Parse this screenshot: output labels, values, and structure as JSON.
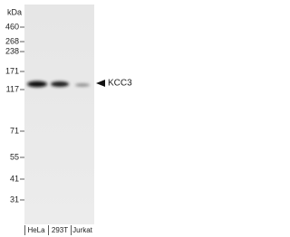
{
  "blot": {
    "unit_label": "kDa",
    "markers": [
      "460",
      "268",
      "238",
      "171",
      "117",
      "71",
      "55",
      "41",
      "31"
    ],
    "lanes": [
      "HeLa",
      "293T",
      "Jurkat"
    ],
    "target": "KCC3"
  }
}
